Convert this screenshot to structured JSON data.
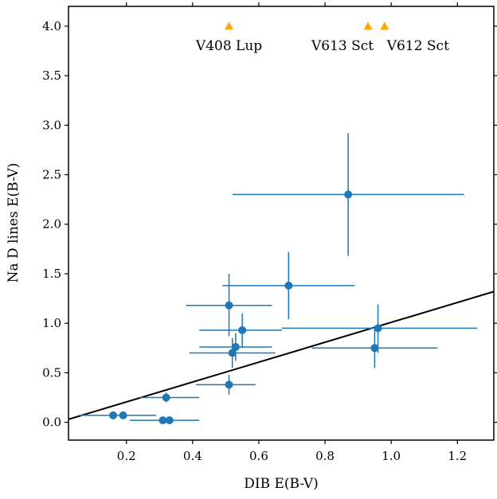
{
  "chart_data": {
    "type": "scatter",
    "xlabel": "DIB E(B-V)",
    "ylabel": "Na D lines E(B-V)",
    "xlim": [
      0.025,
      1.31
    ],
    "ylim": [
      -0.18,
      4.2
    ],
    "xticks": [
      {
        "value": 0.2,
        "label": "0.2"
      },
      {
        "value": 0.4,
        "label": "0.4"
      },
      {
        "value": 0.6,
        "label": "0.6"
      },
      {
        "value": 0.8,
        "label": "0.8"
      },
      {
        "value": 1.0,
        "label": "1.0"
      },
      {
        "value": 1.2,
        "label": "1.2"
      }
    ],
    "yticks": [
      {
        "value": 0.0,
        "label": "0.0"
      },
      {
        "value": 0.5,
        "label": "0.5"
      },
      {
        "value": 1.0,
        "label": "1.0"
      },
      {
        "value": 1.5,
        "label": "1.5"
      },
      {
        "value": 2.0,
        "label": "2.0"
      },
      {
        "value": 2.5,
        "label": "2.5"
      },
      {
        "value": 3.0,
        "label": "3.0"
      },
      {
        "value": 3.5,
        "label": "3.5"
      },
      {
        "value": 4.0,
        "label": "4.0"
      }
    ],
    "grid": false,
    "points_color": "#1f77b4",
    "points": [
      {
        "x": 0.16,
        "y": 0.07,
        "xmin": 0.06,
        "xmax": 0.29,
        "ymin": 0.07,
        "ymax": 0.07
      },
      {
        "x": 0.19,
        "y": 0.07,
        "xmin": 0.19,
        "xmax": 0.19,
        "ymin": 0.07,
        "ymax": 0.07
      },
      {
        "x": 0.31,
        "y": 0.02,
        "xmin": 0.21,
        "xmax": 0.42,
        "ymin": 0.02,
        "ymax": 0.02
      },
      {
        "x": 0.33,
        "y": 0.02,
        "xmin": 0.33,
        "xmax": 0.33,
        "ymin": 0.02,
        "ymax": 0.02
      },
      {
        "x": 0.32,
        "y": 0.25,
        "xmin": 0.24,
        "xmax": 0.42,
        "ymin": 0.2,
        "ymax": 0.3
      },
      {
        "x": 0.51,
        "y": 0.38,
        "xmin": 0.41,
        "xmax": 0.59,
        "ymin": 0.28,
        "ymax": 0.48
      },
      {
        "x": 0.52,
        "y": 0.7,
        "xmin": 0.39,
        "xmax": 0.65,
        "ymin": 0.55,
        "ymax": 0.85
      },
      {
        "x": 0.53,
        "y": 0.76,
        "xmin": 0.42,
        "xmax": 0.64,
        "ymin": 0.62,
        "ymax": 0.9
      },
      {
        "x": 0.51,
        "y": 1.18,
        "xmin": 0.38,
        "xmax": 0.64,
        "ymin": 0.87,
        "ymax": 1.5
      },
      {
        "x": 0.55,
        "y": 0.93,
        "xmin": 0.42,
        "xmax": 0.67,
        "ymin": 0.75,
        "ymax": 1.1
      },
      {
        "x": 0.69,
        "y": 1.38,
        "xmin": 0.49,
        "xmax": 0.89,
        "ymin": 1.04,
        "ymax": 1.72
      },
      {
        "x": 0.87,
        "y": 2.3,
        "xmin": 0.52,
        "xmax": 1.22,
        "ymin": 1.68,
        "ymax": 2.92
      },
      {
        "x": 0.96,
        "y": 0.95,
        "xmin": 0.67,
        "xmax": 1.26,
        "ymin": 0.7,
        "ymax": 1.19
      },
      {
        "x": 0.95,
        "y": 0.75,
        "xmin": 0.76,
        "xmax": 1.14,
        "ymin": 0.55,
        "ymax": 0.95
      }
    ],
    "fit_line": {
      "x": [
        0.025,
        1.31
      ],
      "y": [
        0.03,
        1.32
      ],
      "color": "#000000"
    },
    "annotations": [
      {
        "label": "V408 Lup",
        "x": 0.51,
        "y": 4.0,
        "marker": "triangle",
        "color": "#ffa500"
      },
      {
        "label": "V613 Sct",
        "x": 0.93,
        "y": 4.0,
        "marker": "triangle",
        "color": "#ffa500"
      },
      {
        "label": "V612 Sct",
        "x": 0.98,
        "y": 4.0,
        "marker": "triangle",
        "color": "#ffa500"
      }
    ]
  }
}
